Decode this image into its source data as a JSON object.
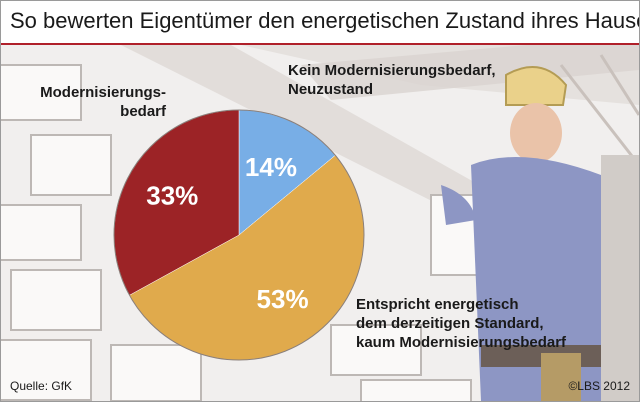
{
  "title": "So bewerten Eigentümer den energetischen Zustand ihres Hauses",
  "chart_data": {
    "type": "pie",
    "slices": [
      {
        "label_lines": [
          "Kein Modernisierungsbedarf,",
          "Neuzustand"
        ],
        "value": 14,
        "value_label": "14%",
        "color": "#78aee6"
      },
      {
        "label_lines": [
          "Entspricht energetisch",
          "dem derzeitigen Standard,",
          "kaum Modernisierungsbedarf"
        ],
        "value": 53,
        "value_label": "53%",
        "color": "#e0aa4c"
      },
      {
        "label_lines": [
          "Modernisierungs-",
          "bedarf"
        ],
        "value": 33,
        "value_label": "33%",
        "color": "#9c2326"
      }
    ]
  },
  "footer": {
    "source": "Quelle: GfK",
    "copyright": "©LBS 2012"
  },
  "colors": {
    "title_rule": "#b0202a"
  }
}
